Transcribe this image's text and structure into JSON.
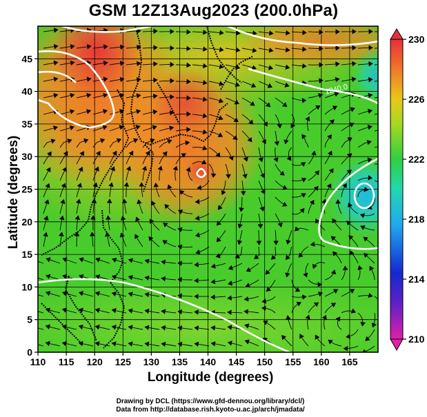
{
  "title": "GSM 12Z13Aug2023 (200.0hPa)",
  "xlabel": "Longitude (degrees)",
  "ylabel": "Latitude (degrees)",
  "credit_line1": "Drawing by DCL (https://www.gfd-dennou.org/library/dcl/)",
  "credit_line2": "Data from http://database.rish.kyoto-u.ac.jp/arch/jmadata/",
  "contour_label": "1240.0",
  "map": {
    "lon_range": [
      110,
      170
    ],
    "lat_range": [
      0,
      50
    ],
    "lon_ticks": [
      "110",
      "115",
      "120",
      "125",
      "130",
      "135",
      "140",
      "145",
      "150",
      "155",
      "160",
      "165"
    ],
    "lat_ticks": [
      "0",
      "5",
      "10",
      "15",
      "20",
      "25",
      "30",
      "35",
      "40",
      "45"
    ],
    "colorbar_ticks": [
      "210",
      "214",
      "218",
      "222",
      "226",
      "230"
    ],
    "colorbar_range": [
      210,
      230
    ]
  },
  "colors": {
    "hot": "#e8403a",
    "orange": "#f08a28",
    "yellow": "#e9c61e",
    "green": "#4ccd2a",
    "cyan": "#20c8d8",
    "blue": "#1440d8",
    "magenta": "#d81a98"
  }
}
